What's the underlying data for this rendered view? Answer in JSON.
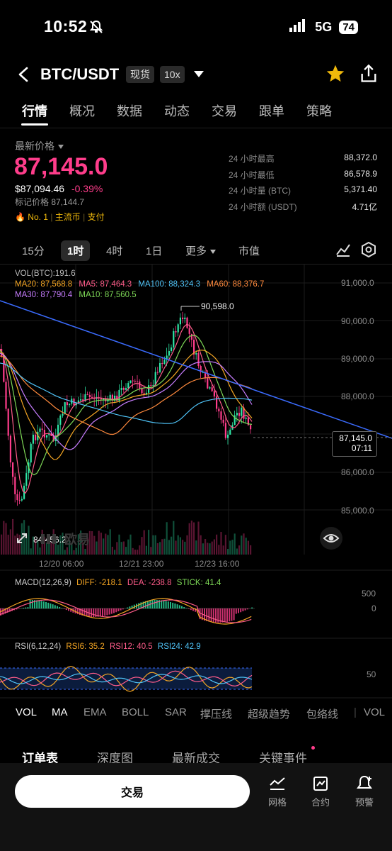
{
  "status": {
    "time": "10:52",
    "network": "5G",
    "battery": "74"
  },
  "header": {
    "pair": "BTC/USDT",
    "market_type": "现货",
    "leverage": "10x"
  },
  "tabs": [
    "行情",
    "概况",
    "数据",
    "动态",
    "交易",
    "跟单",
    "策略"
  ],
  "ticker": {
    "latest_label": "最新价格",
    "price": "87,145.0",
    "usd_price": "$87,094.46",
    "change": "-0.39%",
    "mark_price": "标记价格 87,144.7",
    "rank": "No. 1",
    "tag1": "主流币",
    "tag2": "支付",
    "stats": [
      {
        "k": "24 小时最高",
        "v": "88,372.0"
      },
      {
        "k": "24 小时最低",
        "v": "86,578.9"
      },
      {
        "k": "24 小时量 (BTC)",
        "v": "5,371.40"
      },
      {
        "k": "24 小时额 (USDT)",
        "v": "4.71亿"
      }
    ]
  },
  "intervals": {
    "items": [
      "15分",
      "1时",
      "4时",
      "1日",
      "更多",
      "市值"
    ],
    "active": "1时"
  },
  "chart": {
    "vol_label": "VOL(BTC):191.6",
    "ma_legend_row1": [
      {
        "text": "MA20: 87,568.8",
        "color": "#f5a623"
      },
      {
        "text": "MA5: 87,464.3",
        "color": "#ff5c8a"
      },
      {
        "text": "MA100: 88,324.3",
        "color": "#4fc3f7"
      },
      {
        "text": "MA60: 88,376.7",
        "color": "#ff8a3d"
      }
    ],
    "ma_legend_row2": [
      {
        "text": "MA30: 87,790.4",
        "color": "#c77dff"
      },
      {
        "text": "MA10: 87,560.5",
        "color": "#7ed957"
      }
    ],
    "y_labels": [
      "91,000.0",
      "90,000.0",
      "89,000.0",
      "88,000.0",
      "86,000.0",
      "85,000.0"
    ],
    "last_price": "87,145.0",
    "countdown": "07:11",
    "high_marker": "90,598.0",
    "low_marker": "84,456.2",
    "watermark": "欧易",
    "x_labels": [
      "12/20 06:00",
      "12/21 23:00",
      "12/23 16:00"
    ]
  },
  "macd": {
    "title": "MACD(12,26,9)",
    "diff": "DIFF: -218.1",
    "dea": "DEA: -238.8",
    "stick": "STICK: 41.4",
    "axis": [
      "500",
      "0"
    ]
  },
  "rsi": {
    "title": "RSI(6,12,24)",
    "rsi6": "RSI6: 35.2",
    "rsi12": "RSI12: 40.5",
    "rsi24": "RSI24: 42.9",
    "axis": [
      "50"
    ]
  },
  "indicator_tabs": [
    "VOL",
    "MA",
    "EMA",
    "BOLL",
    "SAR",
    "撑压线",
    "超级趋势",
    "包络线",
    "VOL"
  ],
  "order_tabs": [
    "订单表",
    "深度图",
    "最新成交",
    "关键事件"
  ],
  "bottom": {
    "trade": "交易",
    "icons": [
      "网格",
      "合约",
      "预警"
    ]
  },
  "colors": {
    "up": "#2ee6a6",
    "down": "#ff3d8b",
    "accent": "#f0b90b"
  }
}
